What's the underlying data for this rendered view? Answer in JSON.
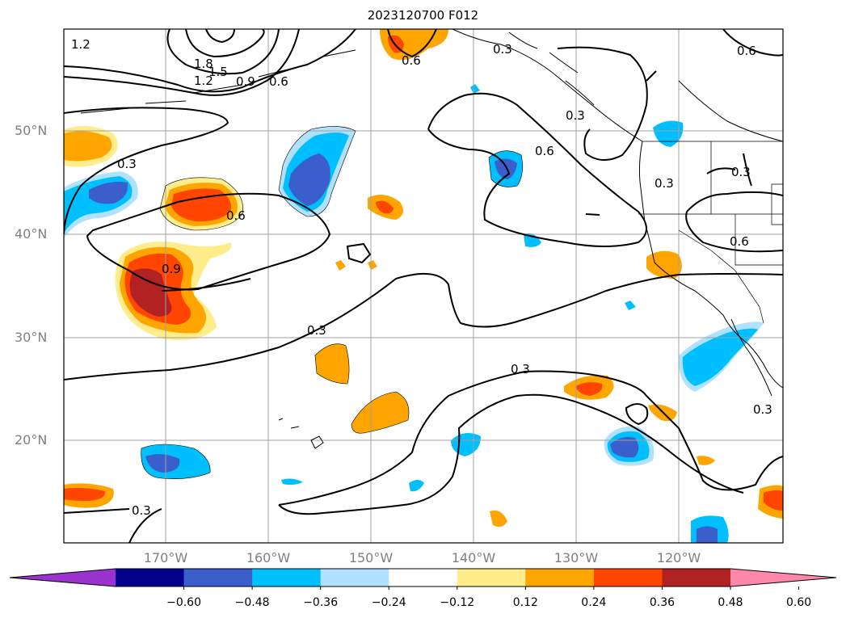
{
  "title": "2023120700 F012",
  "lat_labels": [
    "50°N",
    "40°N",
    "30°N",
    "20°N"
  ],
  "lon_labels": [
    "170°W",
    "160°W",
    "150°W",
    "140°W",
    "130°W",
    "120°W"
  ],
  "colorbar": {
    "tick_labels": [
      "−0.60",
      "−0.48",
      "−0.36",
      "−0.24",
      "−0.12",
      "0.12",
      "0.24",
      "0.36",
      "0.48",
      "0.60"
    ],
    "colors": [
      "#9a32cd",
      "#00008b",
      "#3a5fcd",
      "#00bfff",
      "#b0e2ff",
      "#ffffff",
      "#ffec8b",
      "#ffa500",
      "#ff4500",
      "#b22222",
      "#ff88aa"
    ]
  },
  "contour_labels": [
    "1.2",
    "1.8",
    "1.5",
    "1.2",
    "0.9",
    "0.6",
    "0.6",
    "0.3",
    "0.6",
    "0.3",
    "0.6",
    "0.3",
    "0.3",
    "0.3",
    "0.6",
    "0.9",
    "0.3",
    "0.3",
    "0.3",
    "0.3"
  ]
}
